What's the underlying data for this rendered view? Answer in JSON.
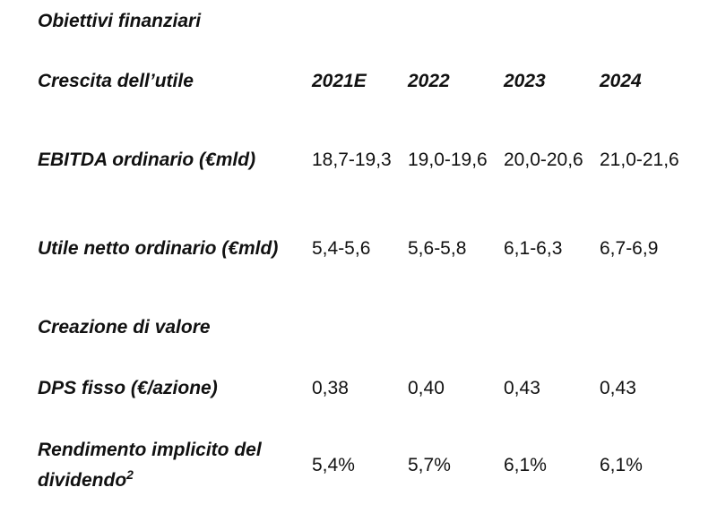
{
  "table": {
    "title": "Obiettivi finanziari",
    "growth_label": "Crescita dell’utile",
    "years": [
      "2021E",
      "2022",
      "2023",
      "2024"
    ],
    "ebitda": {
      "label": "EBITDA ordinario (€mld)",
      "values": [
        "18,7-19,3",
        "19,0-19,6",
        "20,0-20,6",
        "21,0-21,6"
      ]
    },
    "utile": {
      "label": "Utile netto ordinario (€mld)",
      "values": [
        "5,4-5,6",
        "5,6-5,8",
        "6,1-6,3",
        "6,7-6,9"
      ]
    },
    "creazione_label": "Creazione di valore",
    "dps": {
      "label": "DPS fisso (€/azione)",
      "values": [
        "0,38",
        "0,40",
        "0,43",
        "0,43"
      ]
    },
    "rendimento": {
      "label": "Rendimento implicito del dividendo",
      "footnote": "2",
      "values": [
        "5,4%",
        "5,7%",
        "6,1%",
        "6,1%"
      ]
    }
  }
}
